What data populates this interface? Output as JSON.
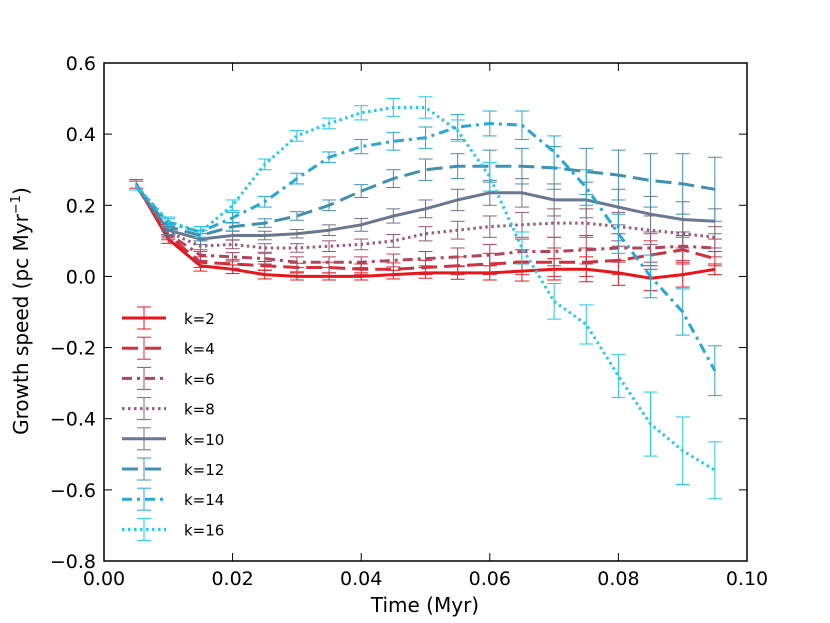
{
  "chart_data": {
    "type": "line",
    "title": "",
    "xlabel": "Time (Myr)",
    "ylabel_main": "Growth speed (pc Myr",
    "ylabel_sup": "−1",
    "ylabel_close": ")",
    "xlim": [
      0.0,
      0.1
    ],
    "ylim": [
      -0.8,
      0.6
    ],
    "xticks": [
      0.0,
      0.02,
      0.04,
      0.06,
      0.08,
      0.1
    ],
    "xtick_labels": [
      "0.00",
      "0.02",
      "0.04",
      "0.06",
      "0.08",
      "0.10"
    ],
    "yticks": [
      -0.8,
      -0.6,
      -0.4,
      -0.2,
      0.0,
      0.2,
      0.4,
      0.6
    ],
    "ytick_labels": [
      "−0.8",
      "−0.6",
      "−0.4",
      "−0.2",
      "0.0",
      "0.2",
      "0.4",
      "0.6"
    ],
    "grid": false,
    "legend_position": "lower-left",
    "x": [
      0.005,
      0.01,
      0.015,
      0.02,
      0.025,
      0.03,
      0.035,
      0.04,
      0.045,
      0.05,
      0.055,
      0.06,
      0.065,
      0.07,
      0.075,
      0.08,
      0.085,
      0.09,
      0.095
    ],
    "series": [
      {
        "name": "k=2",
        "color": "#e8161b",
        "dash": "solid",
        "width": 3,
        "values": [
          0.26,
          0.105,
          0.03,
          0.02,
          0.005,
          0.0,
          0.0,
          0.0,
          0.005,
          0.01,
          0.01,
          0.01,
          0.015,
          0.02,
          0.02,
          0.01,
          -0.005,
          0.005,
          0.02
        ],
        "errors": [
          0.012,
          0.012,
          0.015,
          0.012,
          0.012,
          0.01,
          0.01,
          0.01,
          0.012,
          0.015,
          0.018,
          0.02,
          0.028,
          0.03,
          0.035,
          0.035,
          0.035,
          0.035,
          0.015
        ]
      },
      {
        "name": "k=4",
        "color": "#d42e3c",
        "dash": "long-dash",
        "width": 3,
        "values": [
          0.255,
          0.115,
          0.04,
          0.035,
          0.03,
          0.025,
          0.025,
          0.02,
          0.02,
          0.025,
          0.03,
          0.035,
          0.04,
          0.04,
          0.04,
          0.045,
          0.06,
          0.075,
          0.05
        ],
        "errors": [
          0.012,
          0.012,
          0.015,
          0.012,
          0.012,
          0.012,
          0.015,
          0.015,
          0.018,
          0.02,
          0.025,
          0.03,
          0.035,
          0.04,
          0.04,
          0.04,
          0.04,
          0.04,
          0.02
        ]
      },
      {
        "name": "k=6",
        "color": "#b2455a",
        "dash": "dash-dot",
        "width": 3,
        "values": [
          0.255,
          0.12,
          0.06,
          0.055,
          0.05,
          0.04,
          0.04,
          0.04,
          0.045,
          0.05,
          0.055,
          0.06,
          0.07,
          0.07,
          0.075,
          0.08,
          0.08,
          0.085,
          0.08
        ],
        "errors": [
          0.012,
          0.012,
          0.015,
          0.012,
          0.015,
          0.015,
          0.015,
          0.015,
          0.018,
          0.02,
          0.025,
          0.03,
          0.035,
          0.04,
          0.04,
          0.04,
          0.04,
          0.04,
          0.025
        ]
      },
      {
        "name": "k=8",
        "color": "#9a5a78",
        "dash": "dotted",
        "width": 3,
        "values": [
          0.255,
          0.125,
          0.085,
          0.09,
          0.08,
          0.08,
          0.085,
          0.09,
          0.1,
          0.12,
          0.13,
          0.14,
          0.145,
          0.15,
          0.15,
          0.14,
          0.13,
          0.12,
          0.11
        ],
        "errors": [
          0.012,
          0.012,
          0.015,
          0.012,
          0.012,
          0.012,
          0.015,
          0.015,
          0.018,
          0.02,
          0.025,
          0.03,
          0.035,
          0.04,
          0.04,
          0.04,
          0.04,
          0.04,
          0.03
        ]
      },
      {
        "name": "k=10",
        "color": "#6b7690",
        "dash": "solid",
        "width": 3,
        "values": [
          0.255,
          0.13,
          0.105,
          0.115,
          0.115,
          0.12,
          0.13,
          0.145,
          0.17,
          0.19,
          0.215,
          0.235,
          0.235,
          0.215,
          0.215,
          0.195,
          0.175,
          0.16,
          0.155
        ],
        "errors": [
          0.012,
          0.012,
          0.015,
          0.012,
          0.012,
          0.012,
          0.015,
          0.018,
          0.02,
          0.025,
          0.03,
          0.035,
          0.04,
          0.045,
          0.05,
          0.05,
          0.05,
          0.05,
          0.035
        ]
      },
      {
        "name": "k=12",
        "color": "#4090b0",
        "dash": "long-dash",
        "width": 3,
        "values": [
          0.255,
          0.14,
          0.115,
          0.14,
          0.15,
          0.17,
          0.2,
          0.24,
          0.275,
          0.3,
          0.31,
          0.31,
          0.31,
          0.305,
          0.295,
          0.285,
          0.27,
          0.26,
          0.245
        ],
        "errors": [
          0.012,
          0.012,
          0.015,
          0.012,
          0.012,
          0.012,
          0.015,
          0.018,
          0.025,
          0.03,
          0.035,
          0.045,
          0.05,
          0.06,
          0.065,
          0.07,
          0.075,
          0.085,
          0.09
        ]
      },
      {
        "name": "k=14",
        "color": "#26a8d8",
        "dash": "dash-dot",
        "width": 3,
        "values": [
          0.255,
          0.15,
          0.125,
          0.165,
          0.21,
          0.275,
          0.335,
          0.365,
          0.38,
          0.39,
          0.42,
          0.43,
          0.425,
          0.35,
          0.25,
          0.12,
          0.0,
          -0.1,
          -0.265
        ],
        "errors": [
          0.012,
          0.012,
          0.015,
          0.015,
          0.015,
          0.015,
          0.015,
          0.02,
          0.025,
          0.03,
          0.035,
          0.035,
          0.04,
          0.045,
          0.05,
          0.055,
          0.06,
          0.065,
          0.07
        ]
      },
      {
        "name": "k=16",
        "color": "#22c8f0",
        "dash": "dotted",
        "width": 3,
        "values": [
          0.255,
          0.155,
          0.125,
          0.2,
          0.315,
          0.395,
          0.43,
          0.46,
          0.475,
          0.475,
          0.41,
          0.28,
          0.08,
          -0.07,
          -0.135,
          -0.28,
          -0.415,
          -0.49,
          -0.545
        ],
        "errors": [
          0.012,
          0.012,
          0.015,
          0.015,
          0.015,
          0.015,
          0.015,
          0.02,
          0.025,
          0.03,
          0.03,
          0.04,
          0.045,
          0.05,
          0.055,
          0.06,
          0.09,
          0.095,
          0.08
        ]
      }
    ]
  }
}
